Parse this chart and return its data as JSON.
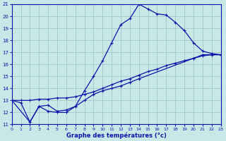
{
  "bg_color": "#c8e8e8",
  "grid_color": "#9ec8c8",
  "line_color": "#1111aa",
  "xlabel": "Graphe des températures (°c)",
  "xlim": [
    0,
    23
  ],
  "ylim": [
    11,
    21
  ],
  "xticks": [
    0,
    1,
    2,
    3,
    4,
    5,
    6,
    7,
    8,
    9,
    10,
    11,
    12,
    13,
    14,
    15,
    16,
    17,
    18,
    19,
    20,
    21,
    22,
    23
  ],
  "yticks": [
    11,
    12,
    13,
    14,
    15,
    16,
    17,
    18,
    19,
    20,
    21
  ],
  "line1_x": [
    0,
    1,
    2,
    3,
    4,
    5,
    6,
    7,
    8,
    9,
    10,
    11,
    12,
    13,
    14,
    15,
    16,
    17,
    18,
    19,
    20,
    21,
    22,
    23
  ],
  "line1_y": [
    13.0,
    12.8,
    11.2,
    12.5,
    12.6,
    12.1,
    12.2,
    12.5,
    13.8,
    15.0,
    16.3,
    17.8,
    19.3,
    19.8,
    21.0,
    20.6,
    20.2,
    20.1,
    19.5,
    18.8,
    17.8,
    17.1,
    16.9,
    16.8
  ],
  "line2_x": [
    0,
    1,
    2,
    3,
    4,
    5,
    6,
    7,
    8,
    9,
    10,
    11,
    12,
    13,
    14,
    15,
    16,
    17,
    18,
    19,
    20,
    21,
    22,
    23
  ],
  "line2_y": [
    13.0,
    13.0,
    13.0,
    13.1,
    13.1,
    13.2,
    13.2,
    13.3,
    13.5,
    13.7,
    14.0,
    14.3,
    14.6,
    14.8,
    15.1,
    15.4,
    15.6,
    15.9,
    16.1,
    16.3,
    16.5,
    16.7,
    16.8,
    16.8
  ],
  "line3_x": [
    0,
    2,
    3,
    4,
    5,
    6,
    7,
    8,
    9,
    10,
    11,
    12,
    13,
    14,
    20,
    21,
    22,
    23
  ],
  "line3_y": [
    13.0,
    11.2,
    12.5,
    12.1,
    12.0,
    12.0,
    12.5,
    13.0,
    13.5,
    13.8,
    14.0,
    14.2,
    14.5,
    14.8,
    16.5,
    16.8,
    16.8,
    16.8
  ]
}
